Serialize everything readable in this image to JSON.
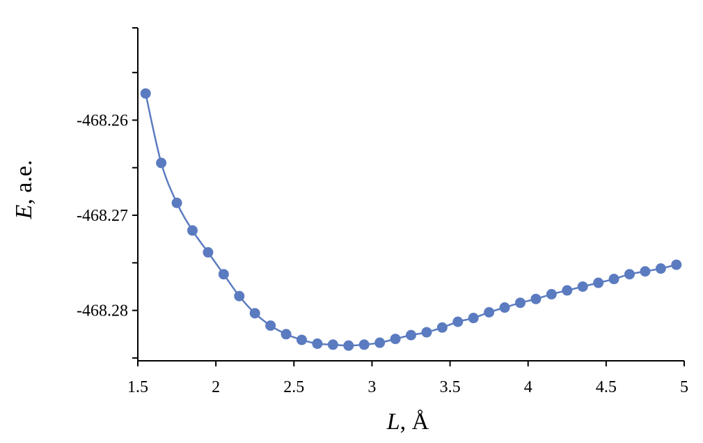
{
  "chart_data": {
    "type": "scatter",
    "xlabel_symbol": "L",
    "xlabel_unit": ", Å",
    "ylabel_symbol": "E",
    "ylabel_unit": ", a.e.",
    "xlim": [
      1.5,
      5
    ],
    "ylim": [
      -468.2853,
      -468.2503
    ],
    "xticks": [
      1.5,
      2,
      2.5,
      3,
      3.5,
      4,
      4.5,
      5
    ],
    "xtick_labels": [
      "1.5",
      "2",
      "2.5",
      "3",
      "3.5",
      "4",
      "4.5",
      "5"
    ],
    "yticks": [
      -468.28,
      -468.27,
      -468.26
    ],
    "ytick_labels": [
      "-468.28",
      "-468.27",
      "-468.26"
    ],
    "grid": false,
    "color": "#5b7bc0",
    "series": [
      {
        "x": [
          1.55,
          1.65,
          1.75,
          1.85,
          1.95,
          2.05,
          2.15,
          2.25,
          2.35,
          2.45,
          2.55,
          2.65,
          2.75,
          2.85,
          2.95,
          3.05,
          3.15,
          3.25,
          3.35,
          3.45,
          3.55,
          3.65,
          3.75,
          3.85,
          3.95,
          4.05,
          4.15,
          4.25,
          4.35,
          4.45,
          4.55,
          4.65,
          4.75,
          4.85,
          4.95
        ],
        "y": [
          -468.2572,
          -468.2645,
          -468.2687,
          -468.2716,
          -468.2739,
          -468.2762,
          -468.2785,
          -468.2803,
          -468.2816,
          -468.2825,
          -468.2831,
          -468.2835,
          -468.2836,
          -468.2837,
          -468.2836,
          -468.2834,
          -468.283,
          -468.2826,
          -468.2823,
          -468.2818,
          -468.2812,
          -468.2808,
          -468.2802,
          -468.2797,
          -468.2792,
          -468.2788,
          -468.2783,
          -468.2779,
          -468.2775,
          -468.2771,
          -468.2767,
          -468.2762,
          -468.2759,
          -468.2756,
          -468.2752
        ]
      }
    ]
  }
}
